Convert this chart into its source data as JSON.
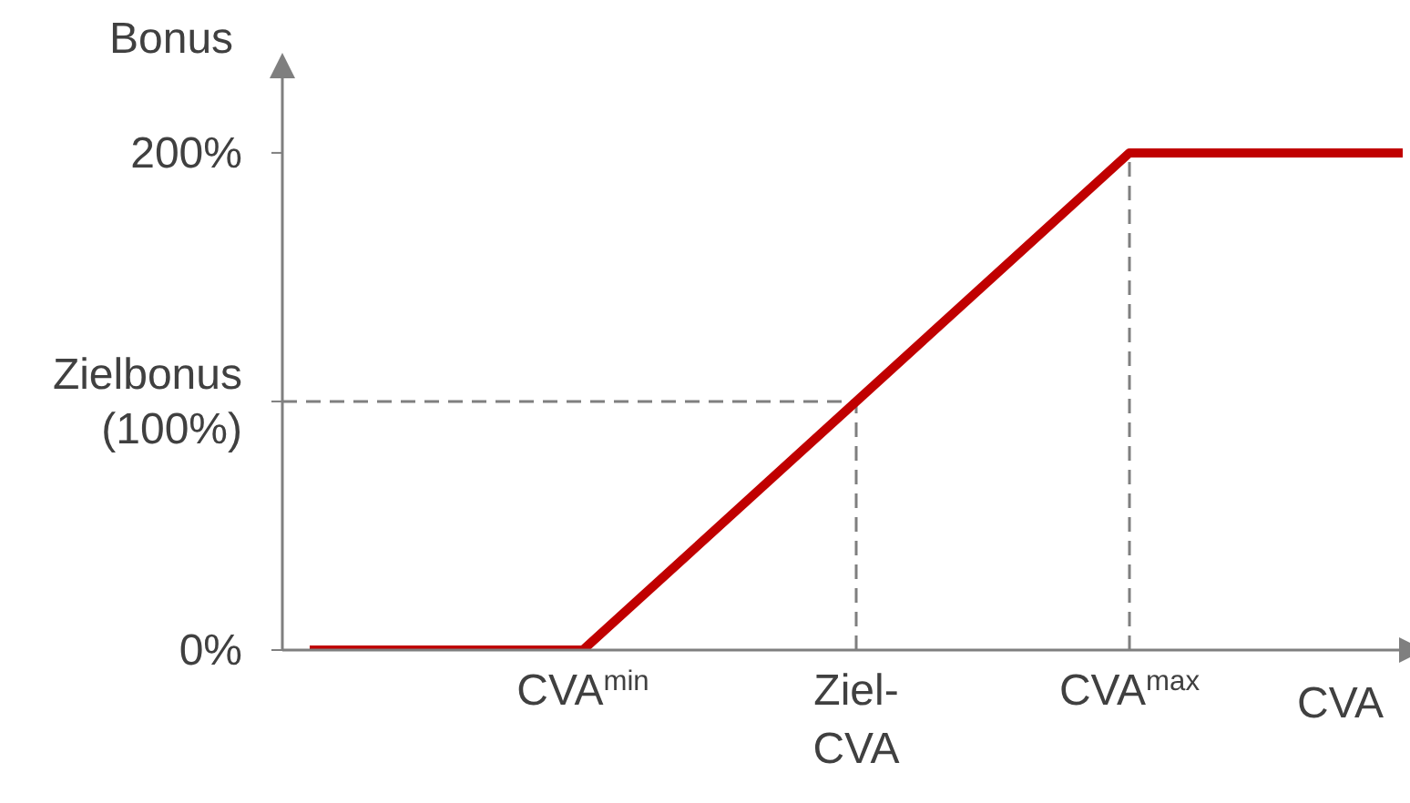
{
  "chart_data": {
    "type": "line",
    "xlabel": "CVA",
    "ylabel": "Bonus",
    "categories": [
      null,
      "CVA$^{min}$",
      "Ziel-CVA",
      "CVA$^{max}$",
      null
    ],
    "series": [
      {
        "color": "#c00000",
        "values": [
          0,
          0,
          100,
          200,
          200
        ]
      }
    ],
    "ylim": [
      0,
      230
    ],
    "yticks": [
      {
        "value": 0,
        "label": "0%"
      },
      {
        "value": 100,
        "label": "Zielbonus (100%)"
      },
      {
        "value": 200,
        "label": "200%"
      }
    ],
    "ref_lines": [
      {
        "axis": "y",
        "value": 100,
        "color": "#7f7f7f",
        "line_style": "dashed"
      },
      {
        "axis": "x",
        "value": "Ziel-CVA",
        "color": "#7f7f7f",
        "line_style": "dashed"
      },
      {
        "axis": "x",
        "value": "CVA$^{max}$",
        "color": "#7f7f7f",
        "line_style": "dashed"
      }
    ],
    "marker": "none",
    "line_style": "solid"
  }
}
